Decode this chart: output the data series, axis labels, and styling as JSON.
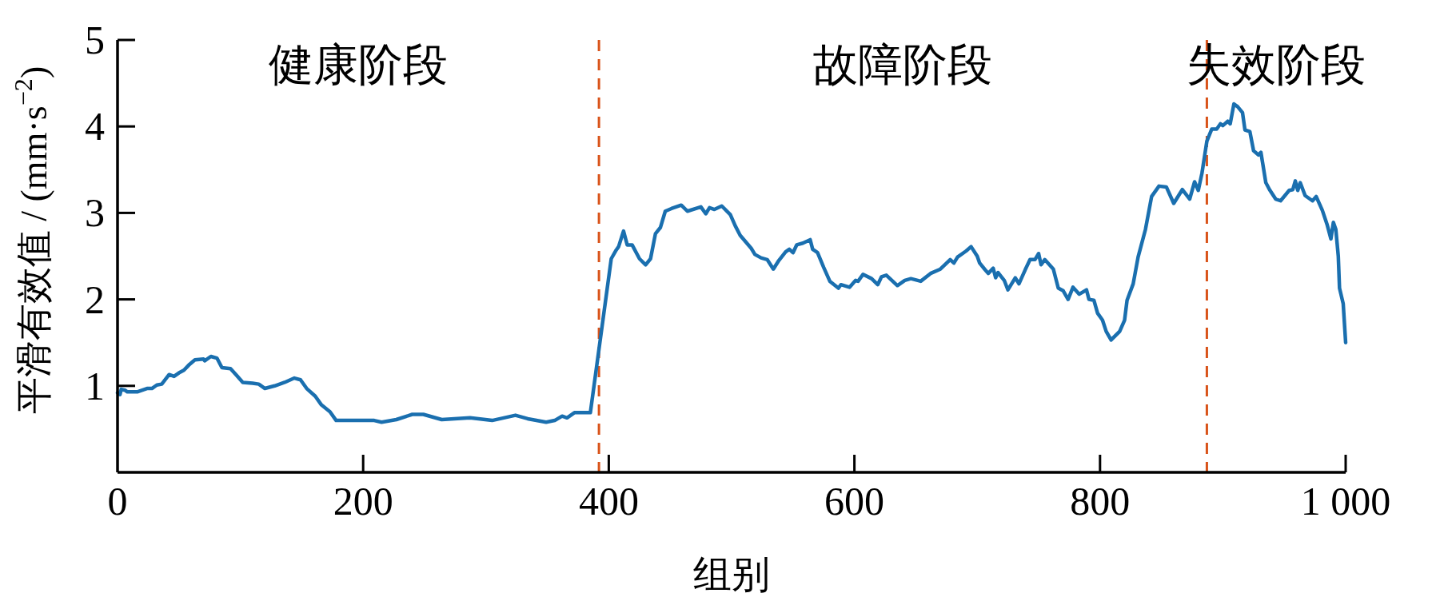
{
  "chart_data": {
    "type": "line",
    "xlabel": "组别",
    "ylabel": "平滑有效值 / (mm·s$^{−2}$)",
    "xlim": [
      0,
      1000
    ],
    "ylim": [
      0,
      5
    ],
    "xticks": [
      0,
      200,
      400,
      600,
      800,
      {
        "value": 1000,
        "label": "1 000"
      }
    ],
    "yticks": [
      1,
      2,
      3,
      4,
      5
    ],
    "grid": false,
    "marker": "none",
    "line_style": "solid",
    "ref_lines": [
      {
        "axis": "x",
        "value": 392,
        "color": "#d95319",
        "line_style": "dashed"
      },
      {
        "axis": "x",
        "value": 887,
        "color": "#d95319",
        "line_style": "dashed"
      }
    ],
    "annotations": [
      "健康阶段",
      "故障阶段",
      "失效阶段"
    ],
    "series": [
      {
        "color": "#1a6faf",
        "x": [
          0,
          2,
          3,
          6,
          8,
          16,
          24,
          28,
          32,
          36,
          42,
          46,
          50,
          54,
          58,
          63,
          70,
          71,
          76,
          81,
          85,
          92,
          97,
          102,
          110,
          115,
          120,
          128,
          136,
          144,
          149,
          154,
          161,
          166,
          173,
          178,
          188,
          204,
          209,
          215,
          227,
          240,
          249,
          264,
          287,
          305,
          324,
          334,
          349,
          356,
          362,
          366,
          372,
          385,
          402,
          406,
          408,
          412,
          415,
          419,
          425,
          430,
          434,
          438,
          442,
          446,
          451,
          459,
          464,
          475,
          479,
          482,
          486,
          492,
          499,
          503,
          507,
          516,
          519,
          524,
          529,
          534,
          538,
          544,
          547,
          550,
          553,
          558,
          564,
          566,
          570,
          575,
          580,
          587,
          589,
          596,
          601,
          603,
          607,
          614,
          619,
          622,
          626,
          635,
          641,
          646,
          654,
          662,
          670,
          678,
          681,
          684,
          691,
          695,
          700,
          702,
          706,
          709,
          713,
          715,
          717,
          722,
          725,
          731,
          734,
          739,
          743,
          747,
          750,
          752,
          755,
          762,
          766,
          770,
          774,
          778,
          783,
          789,
          791,
          795,
          798,
          802,
          805,
          809,
          816,
          820,
          822,
          827,
          831,
          837,
          842,
          848,
          854,
          860,
          867,
          873,
          877,
          880,
          883,
          887,
          891,
          895,
          898,
          900,
          904,
          906,
          909,
          912,
          916,
          918,
          922,
          925,
          929,
          931,
          935,
          938,
          943,
          947,
          954,
          957,
          959,
          961,
          963,
          967,
          973,
          976,
          981,
          985,
          988,
          990,
          992,
          994,
          995,
          998,
          1000
        ],
        "values": [
          0.92,
          0.9,
          0.96,
          0.95,
          0.93,
          0.93,
          0.97,
          0.97,
          1.01,
          1.02,
          1.13,
          1.11,
          1.15,
          1.18,
          1.24,
          1.3,
          1.31,
          1.29,
          1.34,
          1.32,
          1.21,
          1.2,
          1.12,
          1.04,
          1.03,
          1.02,
          0.97,
          1.0,
          1.04,
          1.09,
          1.07,
          0.97,
          0.88,
          0.78,
          0.7,
          0.6,
          0.6,
          0.6,
          0.6,
          0.58,
          0.61,
          0.67,
          0.67,
          0.61,
          0.63,
          0.6,
          0.66,
          0.62,
          0.58,
          0.6,
          0.65,
          0.63,
          0.69,
          0.69,
          2.47,
          2.57,
          2.61,
          2.79,
          2.63,
          2.63,
          2.47,
          2.4,
          2.47,
          2.76,
          2.83,
          3.02,
          3.05,
          3.09,
          3.02,
          3.07,
          2.99,
          3.06,
          3.04,
          3.08,
          2.98,
          2.85,
          2.74,
          2.59,
          2.52,
          2.48,
          2.46,
          2.35,
          2.44,
          2.55,
          2.58,
          2.54,
          2.63,
          2.65,
          2.69,
          2.58,
          2.54,
          2.37,
          2.21,
          2.13,
          2.17,
          2.14,
          2.22,
          2.21,
          2.29,
          2.24,
          2.17,
          2.26,
          2.28,
          2.16,
          2.22,
          2.24,
          2.21,
          2.3,
          2.35,
          2.46,
          2.42,
          2.49,
          2.56,
          2.61,
          2.5,
          2.42,
          2.35,
          2.3,
          2.36,
          2.25,
          2.31,
          2.22,
          2.11,
          2.25,
          2.18,
          2.34,
          2.46,
          2.46,
          2.53,
          2.4,
          2.46,
          2.35,
          2.13,
          2.1,
          2.0,
          2.14,
          2.06,
          2.11,
          2.0,
          1.99,
          1.84,
          1.76,
          1.63,
          1.53,
          1.63,
          1.76,
          1.99,
          2.18,
          2.49,
          2.81,
          3.19,
          3.31,
          3.3,
          3.11,
          3.27,
          3.16,
          3.36,
          3.26,
          3.46,
          3.83,
          3.97,
          3.97,
          4.03,
          4.01,
          4.06,
          4.03,
          4.26,
          4.23,
          4.16,
          3.96,
          3.94,
          3.72,
          3.67,
          3.7,
          3.35,
          3.27,
          3.16,
          3.14,
          3.26,
          3.27,
          3.37,
          3.26,
          3.35,
          3.2,
          3.14,
          3.19,
          3.03,
          2.86,
          2.7,
          2.89,
          2.81,
          2.5,
          2.13,
          1.95,
          1.5
        ]
      }
    ]
  }
}
